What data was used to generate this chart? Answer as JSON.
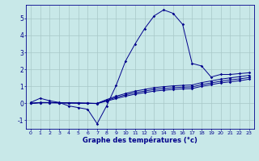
{
  "xlabel": "Graphe des températures (°c)",
  "background_color": "#c8e8e8",
  "grid_color": "#a8c8c8",
  "line_color": "#00008b",
  "xlim": [
    -0.5,
    23.5
  ],
  "ylim": [
    -1.5,
    5.8
  ],
  "yticks": [
    -1,
    0,
    1,
    2,
    3,
    4,
    5
  ],
  "xticks": [
    0,
    1,
    2,
    3,
    4,
    5,
    6,
    7,
    8,
    9,
    10,
    11,
    12,
    13,
    14,
    15,
    16,
    17,
    18,
    19,
    20,
    21,
    22,
    23
  ],
  "line1_x": [
    0,
    1,
    2,
    3,
    4,
    5,
    6,
    7,
    8,
    9,
    10,
    11,
    12,
    13,
    14,
    15,
    16,
    17,
    18,
    19,
    20,
    21,
    22,
    23
  ],
  "line1_y": [
    0.05,
    0.3,
    0.15,
    0.05,
    -0.15,
    -0.25,
    -0.35,
    -1.2,
    -0.15,
    1.05,
    2.5,
    3.5,
    4.4,
    5.15,
    5.5,
    5.3,
    4.65,
    2.35,
    2.2,
    1.55,
    1.7,
    1.7,
    1.75,
    1.8
  ],
  "line2_x": [
    0,
    1,
    2,
    3,
    4,
    5,
    6,
    7,
    8,
    9,
    10,
    11,
    12,
    13,
    14,
    15,
    16,
    17,
    18,
    19,
    20,
    21,
    22,
    23
  ],
  "line2_y": [
    0.0,
    0.05,
    0.05,
    0.04,
    0.03,
    0.02,
    0.01,
    0.0,
    0.22,
    0.42,
    0.58,
    0.72,
    0.82,
    0.92,
    0.98,
    1.03,
    1.06,
    1.08,
    1.22,
    1.32,
    1.42,
    1.5,
    1.57,
    1.65
  ],
  "line3_x": [
    0,
    1,
    2,
    3,
    4,
    5,
    6,
    7,
    8,
    9,
    10,
    11,
    12,
    13,
    14,
    15,
    16,
    17,
    18,
    19,
    20,
    21,
    22,
    23
  ],
  "line3_y": [
    0.0,
    0.04,
    0.04,
    0.03,
    0.025,
    0.015,
    0.005,
    -0.01,
    0.17,
    0.35,
    0.5,
    0.63,
    0.72,
    0.82,
    0.87,
    0.92,
    0.95,
    0.97,
    1.1,
    1.2,
    1.3,
    1.38,
    1.44,
    1.52
  ],
  "line4_x": [
    0,
    1,
    2,
    3,
    4,
    5,
    6,
    7,
    8,
    9,
    10,
    11,
    12,
    13,
    14,
    15,
    16,
    17,
    18,
    19,
    20,
    21,
    22,
    23
  ],
  "line4_y": [
    0.0,
    0.03,
    0.03,
    0.02,
    0.015,
    0.01,
    0.0,
    -0.015,
    0.13,
    0.28,
    0.42,
    0.54,
    0.63,
    0.72,
    0.77,
    0.82,
    0.85,
    0.87,
    1.0,
    1.1,
    1.2,
    1.27,
    1.33,
    1.42
  ]
}
